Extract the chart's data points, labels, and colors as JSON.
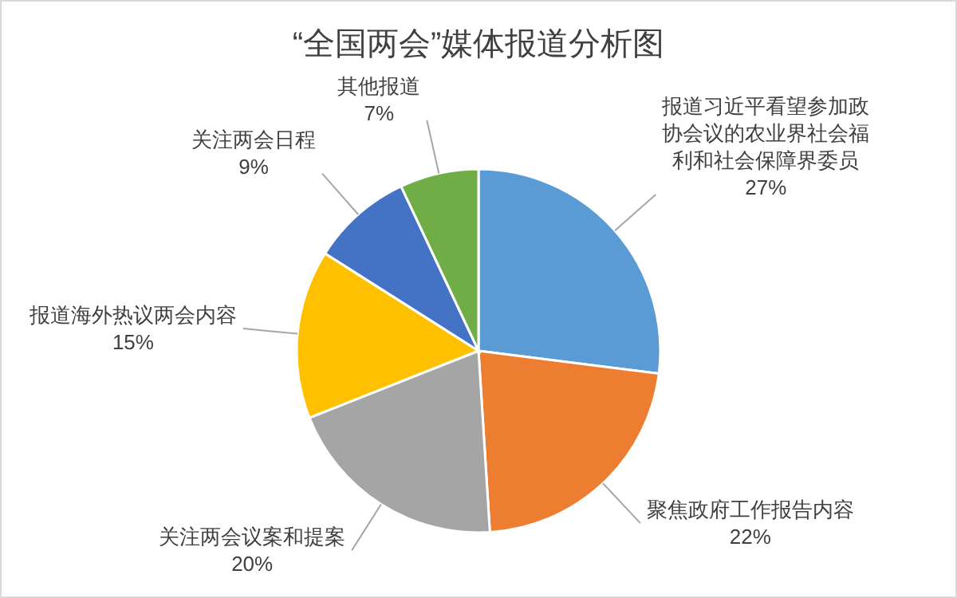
{
  "chart_data": {
    "type": "pie",
    "title": "“全国两会”媒体报道分析图",
    "categories": [
      "报道习近平看望参加政协会议的农业界社会福利和社会保障界委员",
      "聚焦政府工作报告内容",
      "关注两会议案和提案",
      "报道海外热议两会内容",
      "关注两会日程",
      "其他报道"
    ],
    "values": [
      27,
      22,
      20,
      15,
      9,
      7
    ],
    "value_labels": [
      "27%",
      "22%",
      "20%",
      "15%",
      "9%",
      "7%"
    ],
    "colors": [
      "#5b9bd5",
      "#ed7d31",
      "#a5a5a5",
      "#ffc000",
      "#4472c4",
      "#70ad47"
    ]
  }
}
